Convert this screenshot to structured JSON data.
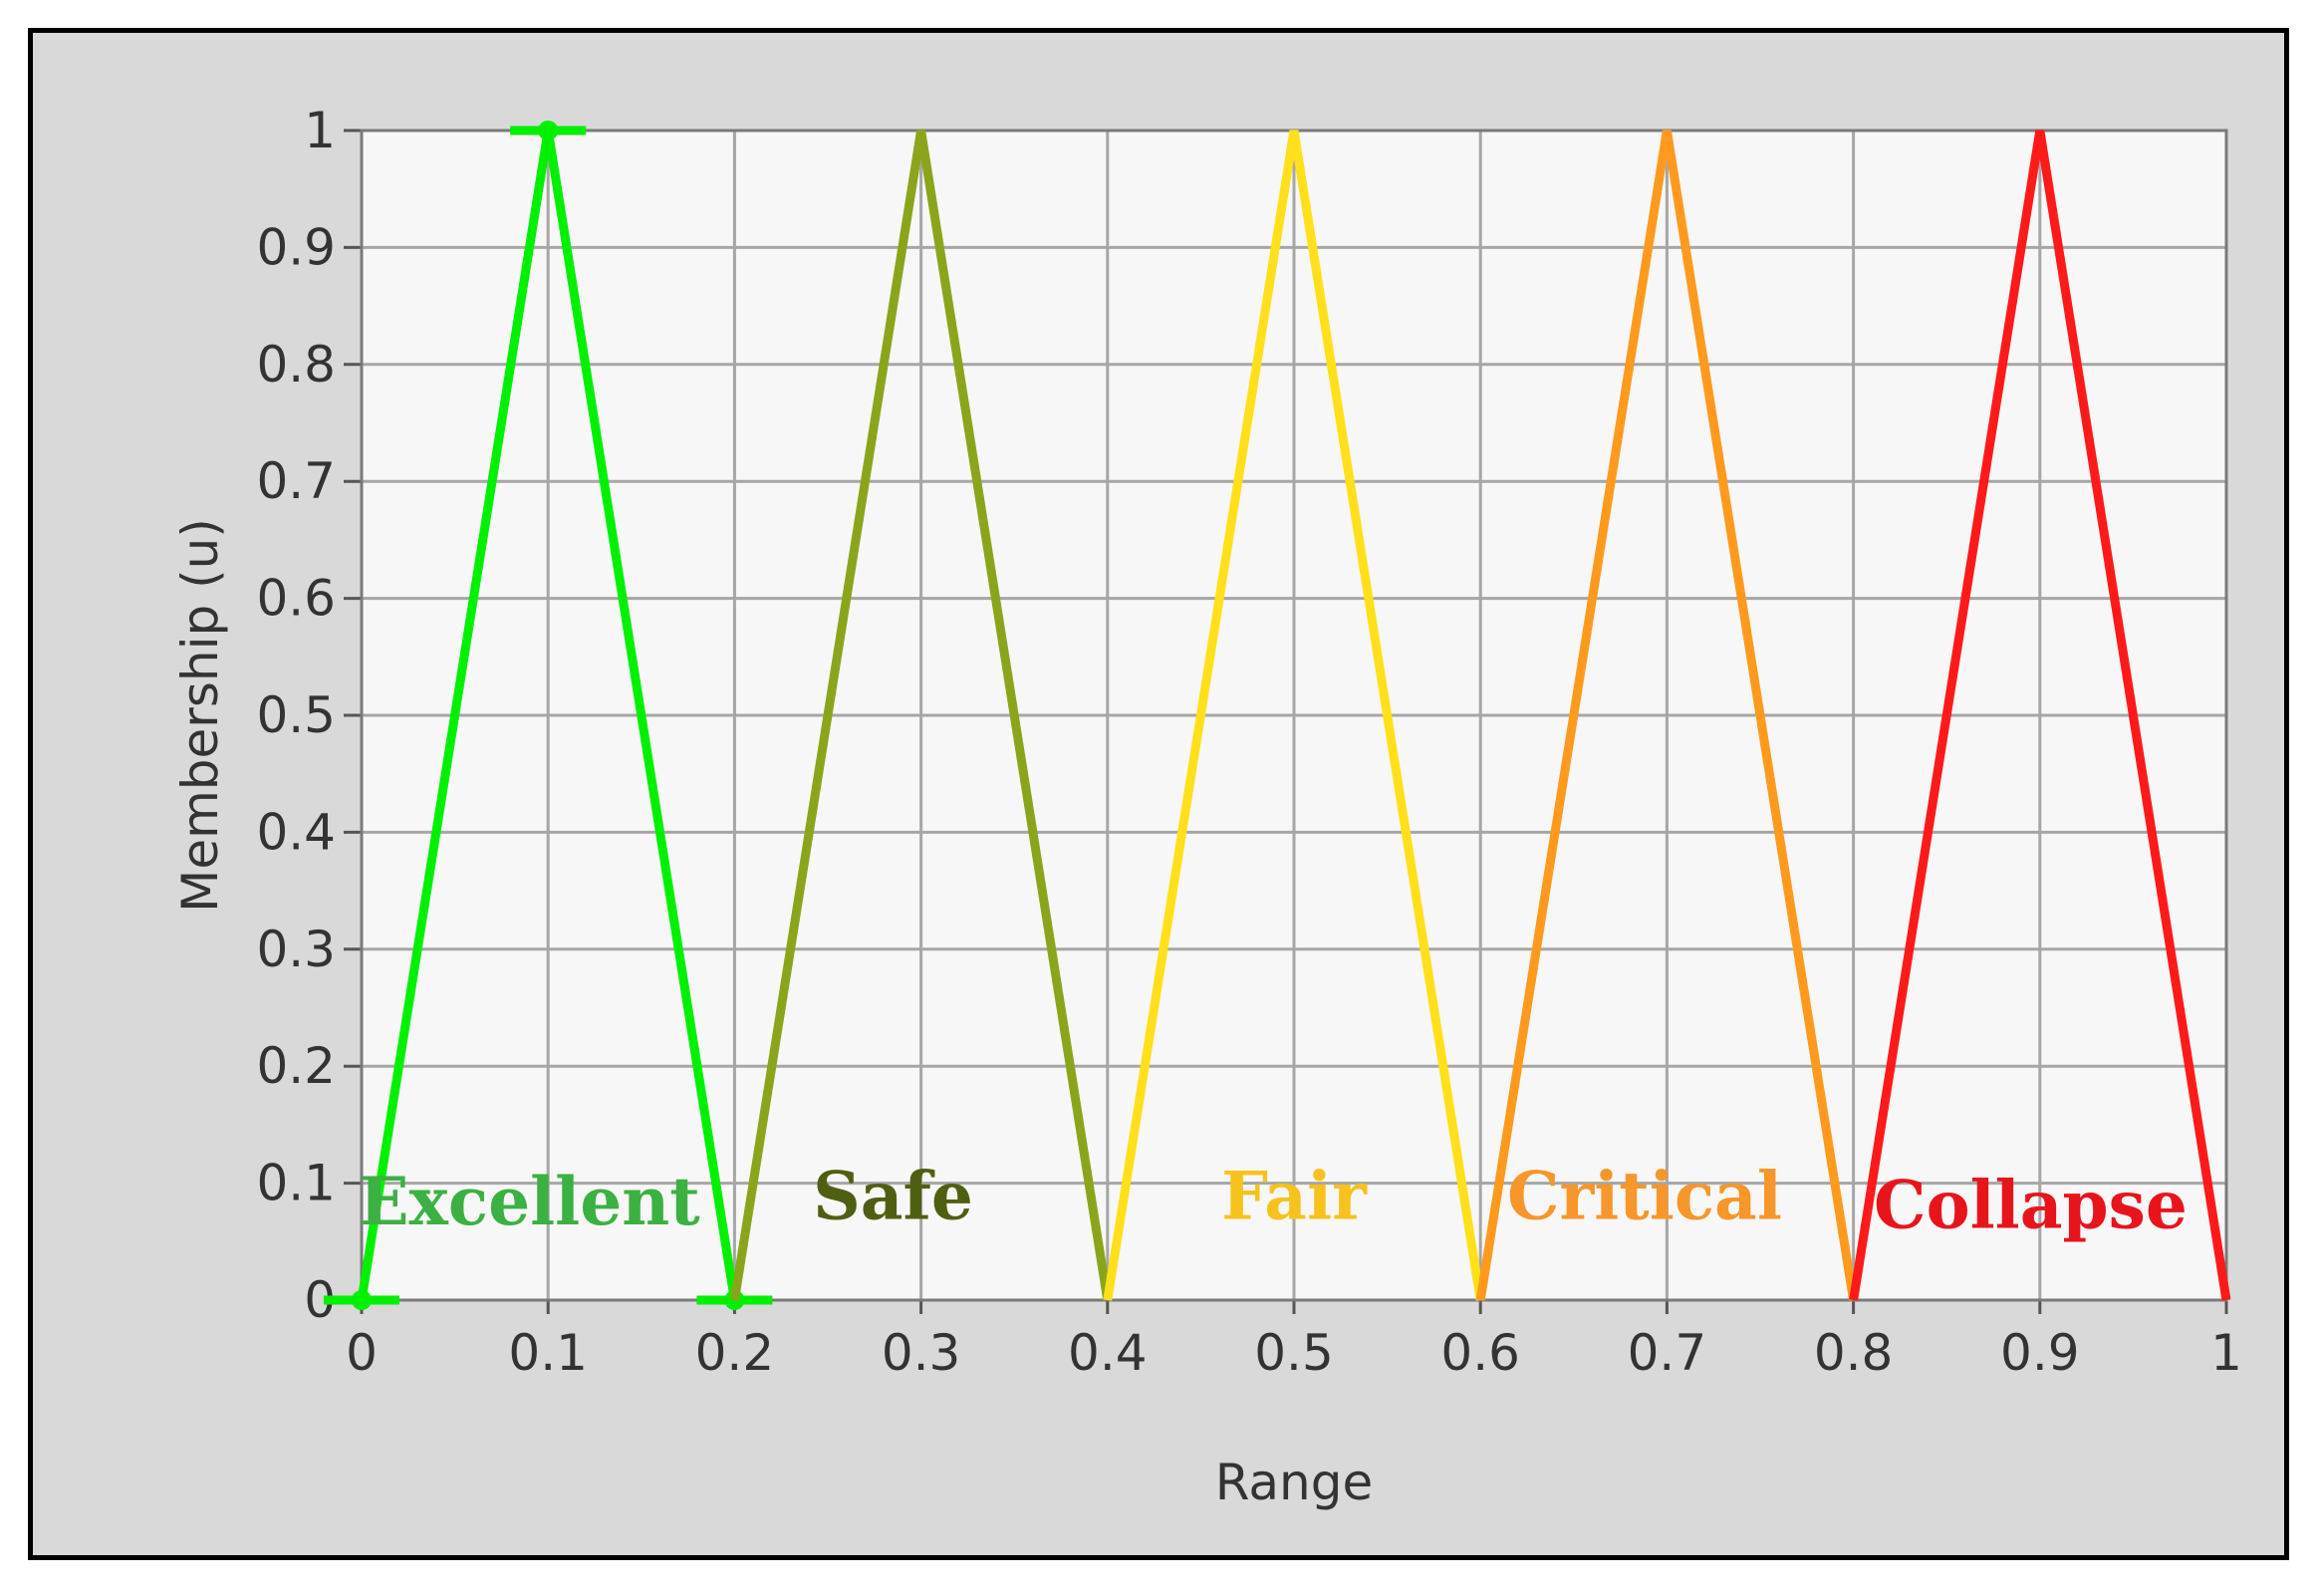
{
  "chart_data": {
    "type": "line",
    "title": "",
    "xlabel": "Range",
    "ylabel": "Membership (u)",
    "xlim": [
      0,
      1
    ],
    "ylim": [
      0,
      1
    ],
    "grid": true,
    "plot_background": "#f7f7f7",
    "grid_color": "#a6a6a6",
    "x_ticks": [
      "0",
      "0.1",
      "0.2",
      "0.3",
      "0.4",
      "0.5",
      "0.6",
      "0.7",
      "0.8",
      "0.9",
      "1"
    ],
    "y_ticks": [
      "0",
      "0.1",
      "0.2",
      "0.3",
      "0.4",
      "0.5",
      "0.6",
      "0.7",
      "0.8",
      "0.9",
      "1"
    ],
    "series": [
      {
        "name": "Excellent",
        "line_color": "#00f000",
        "label_color": "#3cb043",
        "x": [
          0,
          0.1,
          0.2
        ],
        "y": [
          0,
          1,
          0
        ],
        "label_at": [
          0.09,
          0.085
        ],
        "markers": true
      },
      {
        "name": "Safe",
        "line_color": "#8aa51c",
        "label_color": "#4f5f12",
        "x": [
          0.2,
          0.3,
          0.4
        ],
        "y": [
          0,
          1,
          0
        ],
        "label_at": [
          0.285,
          0.09
        ]
      },
      {
        "name": "Fair",
        "line_color": "#ffe01a",
        "label_color": "#f7c21c",
        "x": [
          0.4,
          0.5,
          0.6
        ],
        "y": [
          0,
          1,
          0
        ],
        "label_at": [
          0.5,
          0.09
        ]
      },
      {
        "name": "Critical",
        "line_color": "#ff9a1e",
        "label_color": "#f7962a",
        "x": [
          0.6,
          0.7,
          0.8
        ],
        "y": [
          0,
          1,
          0
        ],
        "label_at": [
          0.688,
          0.09
        ]
      },
      {
        "name": "Collapse",
        "line_color": "#ff1a1a",
        "label_color": "#e8141c",
        "x": [
          0.8,
          0.9,
          1.0
        ],
        "y": [
          0,
          1,
          0
        ],
        "label_at": [
          0.895,
          0.082
        ]
      }
    ]
  }
}
